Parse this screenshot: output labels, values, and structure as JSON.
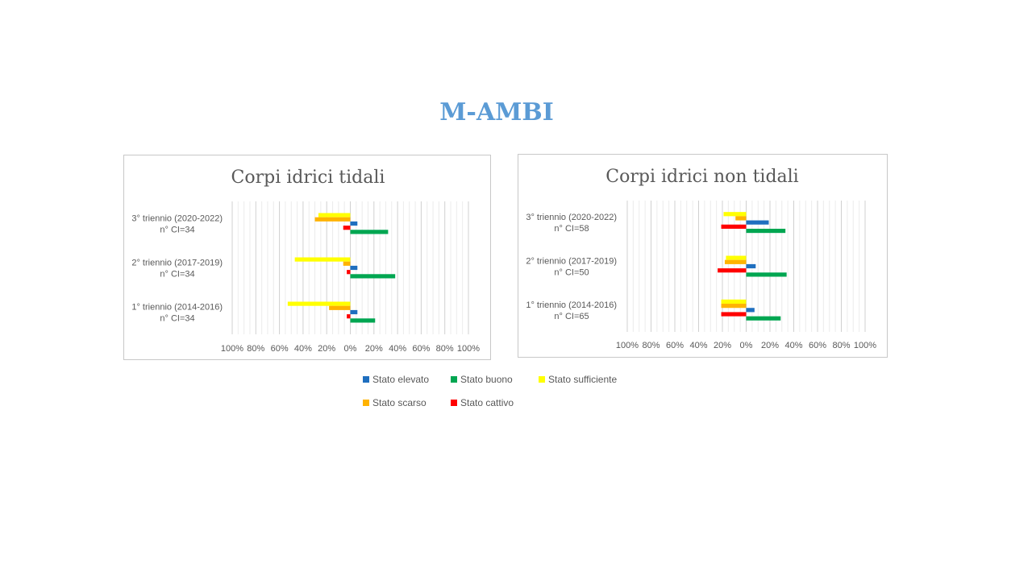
{
  "slide": {
    "title": "M-AMBI"
  },
  "legend": [
    {
      "label": "Stato elevato",
      "color": "#1f6fbf"
    },
    {
      "label": "Stato buono",
      "color": "#00a651"
    },
    {
      "label": "Stato sufficiente",
      "color": "#ffff00"
    },
    {
      "label": "Stato scarso",
      "color": "#ffb300"
    },
    {
      "label": "Stato cattivo",
      "color": "#ff0000"
    }
  ],
  "chart_data": [
    {
      "type": "bar",
      "orientation": "horizontal",
      "title": "Corpi idrici tidali",
      "xlim": [
        -100,
        100
      ],
      "xticks": [
        "100%",
        "80%",
        "60%",
        "40%",
        "20%",
        "0%",
        "20%",
        "40%",
        "60%",
        "80%",
        "100%"
      ],
      "grid": true,
      "categories": [
        {
          "line1": "3° triennio (2020-2022)",
          "line2": "n° CI=34"
        },
        {
          "line1": "2° triennio (2017-2019)",
          "line2": "n° CI=34"
        },
        {
          "line1": "1° triennio (2014-2016)",
          "line2": "n° CI=34"
        }
      ],
      "series": [
        {
          "name": "Stato sufficiente",
          "values": [
            -27,
            -47,
            -53
          ],
          "color": "#ffff00"
        },
        {
          "name": "Stato scarso",
          "values": [
            -30,
            -6,
            -18
          ],
          "color": "#ffb300"
        },
        {
          "name": "Stato elevato",
          "values": [
            6,
            6,
            6
          ],
          "color": "#1f6fbf"
        },
        {
          "name": "Stato cattivo",
          "values": [
            -6,
            -3,
            -3
          ],
          "color": "#ff0000"
        },
        {
          "name": "Stato buono",
          "values": [
            32,
            38,
            21
          ],
          "color": "#00a651"
        }
      ]
    },
    {
      "type": "bar",
      "orientation": "horizontal",
      "title": "Corpi idrici non tidali",
      "xlim": [
        -100,
        100
      ],
      "xticks": [
        "100%",
        "80%",
        "60%",
        "40%",
        "20%",
        "0%",
        "20%",
        "40%",
        "60%",
        "80%",
        "100%"
      ],
      "grid": true,
      "categories": [
        {
          "line1": "3° triennio (2020-2022)",
          "line2": "n° CI=58"
        },
        {
          "line1": "2° triennio (2017-2019)",
          "line2": "n° CI=50"
        },
        {
          "line1": "1° triennio (2014-2016)",
          "line2": "n° CI=65"
        }
      ],
      "series": [
        {
          "name": "Stato sufficiente",
          "values": [
            -19,
            -17,
            -21
          ],
          "color": "#ffff00"
        },
        {
          "name": "Stato scarso",
          "values": [
            -9,
            -18,
            -21
          ],
          "color": "#ffb300"
        },
        {
          "name": "Stato elevato",
          "values": [
            19,
            8,
            7
          ],
          "color": "#1f6fbf"
        },
        {
          "name": "Stato cattivo",
          "values": [
            -21,
            -24,
            -21
          ],
          "color": "#ff0000"
        },
        {
          "name": "Stato buono",
          "values": [
            33,
            34,
            29
          ],
          "color": "#00a651"
        }
      ]
    }
  ]
}
